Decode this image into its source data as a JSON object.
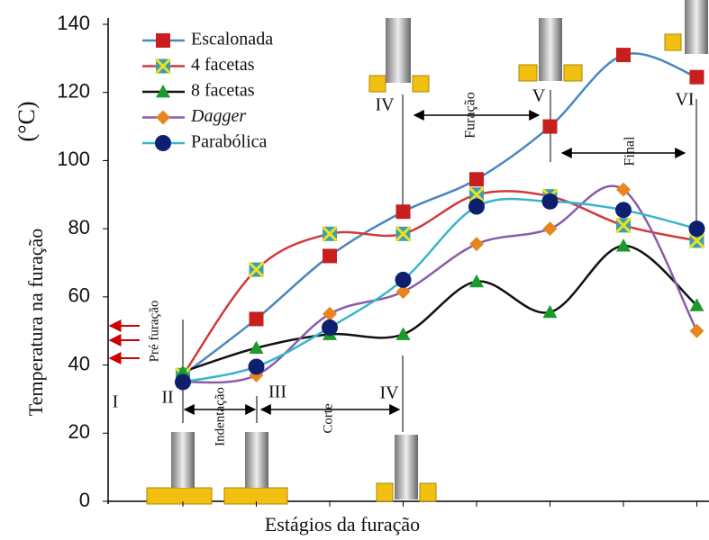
{
  "chart_data": {
    "type": "line",
    "y_label": "Temperatura na furação",
    "y_unit": "(°C)",
    "x_label": "Estágios da furação",
    "categories": [
      null,
      null,
      null,
      null,
      null,
      null,
      null,
      null
    ],
    "ylim": [
      0,
      140
    ],
    "yticks": [
      0,
      20,
      40,
      60,
      80,
      100,
      120,
      140
    ],
    "legend": "top-left",
    "series": [
      {
        "name": "Escalonada",
        "color": "#4a86c0",
        "marker_color": "#c81e1e",
        "marker": "square",
        "values": [
          37,
          53.5,
          72,
          85,
          94.5,
          110,
          131,
          124.5
        ]
      },
      {
        "name": "4 facetas",
        "color": "#d23a3a",
        "marker_color": "#f0e020",
        "marker": "x-box",
        "values": [
          37,
          68,
          78.5,
          78.5,
          90,
          89.5,
          81,
          76.5
        ]
      },
      {
        "name": "8 facetas",
        "color": "#111111",
        "marker_color": "#1a9a2a",
        "marker": "triangle",
        "values": [
          38,
          45,
          49,
          49,
          64.5,
          55.5,
          75,
          57.5
        ]
      },
      {
        "name": "Dagger",
        "color": "#8a5ca8",
        "marker_color": "#e8861e",
        "marker": "diamond",
        "values": [
          35,
          37,
          55,
          61.5,
          75.5,
          80,
          91.5,
          50
        ]
      },
      {
        "name": "Parabólica",
        "color": "#38b4cc",
        "marker_color": "#0f1f70",
        "marker": "circle",
        "values": [
          35,
          39.5,
          51,
          65,
          86.5,
          88,
          85.5,
          80
        ]
      }
    ],
    "annotations": [
      "IV",
      "V",
      "VI",
      "Furação",
      "Final",
      "Pré furação",
      "I",
      "II",
      "III",
      "IV",
      "Indentação",
      "Corte"
    ]
  }
}
